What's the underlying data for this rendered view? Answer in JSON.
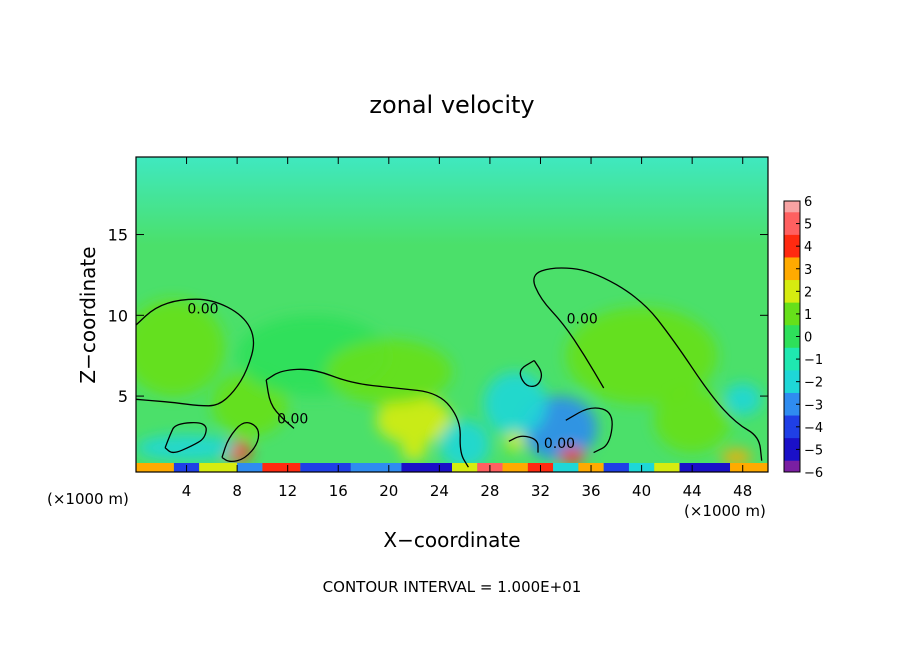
{
  "chart_data": {
    "type": "heatmap",
    "title": "zonal velocity",
    "xlabel": "X−coordinate",
    "ylabel": "Z−coordinate",
    "x_unit_left": "(×1000 m)",
    "x_unit_right": "(×1000 m)",
    "footer": "CONTOUR INTERVAL = 1.000E+01",
    "xlim": [
      0,
      50
    ],
    "ylim": [
      0.3,
      19.8
    ],
    "x_ticks": [
      4,
      8,
      12,
      16,
      20,
      24,
      28,
      32,
      36,
      40,
      44,
      48
    ],
    "x_tick_labels": [
      "4",
      "8",
      "12",
      "16",
      "20",
      "24",
      "28",
      "32",
      "36",
      "40",
      "44",
      "48"
    ],
    "y_ticks": [
      5,
      10,
      15
    ],
    "y_tick_labels": [
      "5",
      "10",
      "15"
    ],
    "grid": false,
    "colorbar": {
      "levels": [
        -6,
        -5,
        -4,
        -3,
        -2,
        -1,
        0,
        1,
        2,
        3,
        4,
        5,
        6
      ],
      "labels": [
        "−6",
        "−5",
        "−4",
        "−3",
        "−2",
        "−1",
        "0",
        "1",
        "2",
        "3",
        "4",
        "5",
        "6"
      ],
      "colors": [
        "#7a1fa2",
        "#1a10c8",
        "#1f3fe6",
        "#2f8cf0",
        "#1ed7d7",
        "#1fe8b0",
        "#2ee05a",
        "#66e01a",
        "#d6ec10",
        "#ffaa00",
        "#ff2a10",
        "#ff6060",
        "#f7a3a3"
      ]
    },
    "background_color": "#4be06a",
    "upper_color": "#3fe8c0",
    "blobs": [
      {
        "x": 3,
        "z": 8,
        "rx": 4,
        "rz": 3,
        "level": 0.6
      },
      {
        "x": 9,
        "z": 4.5,
        "rx": 3,
        "rz": 2,
        "level": 0.7
      },
      {
        "x": 14,
        "z": 7.5,
        "rx": 6,
        "rz": 2.5,
        "level": 0.5
      },
      {
        "x": 22,
        "z": 3.5,
        "rx": 3,
        "rz": 1.5,
        "level": 1.8
      },
      {
        "x": 20,
        "z": 6.5,
        "rx": 5,
        "rz": 2,
        "level": 0.6
      },
      {
        "x": 33.5,
        "z": 3,
        "rx": 3,
        "rz": 2,
        "level": -3.2
      },
      {
        "x": 30,
        "z": 4.5,
        "rx": 2.5,
        "rz": 2,
        "level": -2
      },
      {
        "x": 26,
        "z": 2,
        "rx": 2,
        "rz": 1.5,
        "level": -1.5
      },
      {
        "x": 40,
        "z": 7.5,
        "rx": 6,
        "rz": 3,
        "level": 0.6
      },
      {
        "x": 44,
        "z": 3.5,
        "rx": 3,
        "rz": 2,
        "level": 1.5
      },
      {
        "x": 48,
        "z": 4.8,
        "rx": 1.5,
        "rz": 1,
        "level": -2
      },
      {
        "x": 8,
        "z": 1.6,
        "rx": 1.1,
        "rz": 0.7,
        "level": 4.2
      },
      {
        "x": 22,
        "z": 1.6,
        "rx": 1,
        "rz": 0.6,
        "level": 2.5
      },
      {
        "x": 34.5,
        "z": 1.3,
        "rx": 1,
        "rz": 0.5,
        "level": 4
      },
      {
        "x": 30,
        "z": 2.2,
        "rx": 0.8,
        "rz": 0.6,
        "level": 2
      },
      {
        "x": 4,
        "z": 1.8,
        "rx": 4,
        "rz": 0.8,
        "level": -2
      },
      {
        "x": 47.5,
        "z": 1.2,
        "rx": 1.2,
        "rz": 0.5,
        "level": 3
      }
    ],
    "surface_strip": [
      {
        "x0": 0,
        "x1": 3,
        "level": 3
      },
      {
        "x0": 3,
        "x1": 5,
        "level": -4
      },
      {
        "x0": 5,
        "x1": 8,
        "level": 2
      },
      {
        "x0": 8,
        "x1": 10,
        "level": -3
      },
      {
        "x0": 10,
        "x1": 13,
        "level": 4
      },
      {
        "x0": 13,
        "x1": 17,
        "level": -4
      },
      {
        "x0": 17,
        "x1": 21,
        "level": -3
      },
      {
        "x0": 21,
        "x1": 25,
        "level": -5
      },
      {
        "x0": 25,
        "x1": 27,
        "level": 2
      },
      {
        "x0": 27,
        "x1": 29,
        "level": 5
      },
      {
        "x0": 29,
        "x1": 31,
        "level": 3
      },
      {
        "x0": 31,
        "x1": 33,
        "level": 4
      },
      {
        "x0": 33,
        "x1": 35,
        "level": -2
      },
      {
        "x0": 35,
        "x1": 37,
        "level": 3
      },
      {
        "x0": 37,
        "x1": 39,
        "level": -4
      },
      {
        "x0": 39,
        "x1": 41,
        "level": -2
      },
      {
        "x0": 41,
        "x1": 43,
        "level": 2
      },
      {
        "x0": 43,
        "x1": 47,
        "level": -5
      },
      {
        "x0": 47,
        "x1": 50,
        "level": 3
      }
    ],
    "contours": [
      {
        "level": 0,
        "points": [
          [
            0,
            9.4
          ],
          [
            1.5,
            10.5
          ],
          [
            3.5,
            11
          ],
          [
            6,
            11
          ],
          [
            8.5,
            10
          ],
          [
            9.5,
            8.5
          ],
          [
            8.8,
            6.6
          ],
          [
            7.8,
            5.3
          ],
          [
            6.5,
            4.4
          ],
          [
            5,
            4.4
          ],
          [
            3,
            4.6
          ],
          [
            1.5,
            4.7
          ],
          [
            0,
            4.8
          ]
        ]
      },
      {
        "level": 0,
        "points": [
          [
            10.3,
            6
          ],
          [
            11.5,
            6.6
          ],
          [
            14,
            6.7
          ],
          [
            17,
            5.8
          ],
          [
            20.5,
            5.5
          ],
          [
            24,
            5.2
          ],
          [
            25.7,
            3.5
          ],
          [
            25.6,
            1.5
          ],
          [
            26.3,
            0.6
          ]
        ]
      },
      {
        "level": 0,
        "points": [
          [
            10.3,
            6
          ],
          [
            10.6,
            4.5
          ],
          [
            11.6,
            3.6
          ],
          [
            12.5,
            3
          ]
        ]
      },
      {
        "level": 0,
        "points": [
          [
            31.8,
            1.5
          ],
          [
            31.8,
            2.3
          ],
          [
            30.5,
            2.6
          ],
          [
            29.5,
            2.2
          ]
        ]
      },
      {
        "level": 0,
        "points": [
          [
            31.5,
            7.2
          ],
          [
            32.2,
            6.4
          ],
          [
            31.8,
            5.6
          ],
          [
            30.8,
            5.6
          ],
          [
            30.2,
            6.6
          ],
          [
            31.5,
            7.2
          ]
        ]
      },
      {
        "level": 0,
        "points": [
          [
            34,
            3.5
          ],
          [
            36,
            4.4
          ],
          [
            37.8,
            4
          ],
          [
            37.5,
            2
          ],
          [
            36.2,
            1.5
          ]
        ]
      },
      {
        "level": 0,
        "points": [
          [
            37,
            5.5
          ],
          [
            35.5,
            7.5
          ],
          [
            33.8,
            9.5
          ],
          [
            32,
            11
          ],
          [
            31.2,
            12.5
          ],
          [
            33,
            13
          ],
          [
            36,
            12.8
          ],
          [
            40,
            11
          ],
          [
            42.5,
            8.5
          ],
          [
            45.5,
            5
          ],
          [
            47.5,
            3.3
          ],
          [
            49.3,
            2.5
          ],
          [
            49.5,
            1
          ]
        ]
      },
      {
        "level": 0,
        "points": [
          [
            2.3,
            1.8
          ],
          [
            2.7,
            2.6
          ],
          [
            3.1,
            3.3
          ],
          [
            5.6,
            3.4
          ],
          [
            5.5,
            2.4
          ],
          [
            4.4,
            1.9
          ],
          [
            2.9,
            1.4
          ],
          [
            2.3,
            1.8
          ]
        ]
      },
      {
        "level": 0,
        "points": [
          [
            6.8,
            1.2
          ],
          [
            7.3,
            2.4
          ],
          [
            8.5,
            3.5
          ],
          [
            9.7,
            3.1
          ],
          [
            9.7,
            2.1
          ],
          [
            8.6,
            1.1
          ],
          [
            7.4,
            0.9
          ],
          [
            6.8,
            1.2
          ]
        ]
      }
    ],
    "contour_labels": [
      {
        "text": "0.00",
        "x": 5.3,
        "z": 10.1
      },
      {
        "text": "0.00",
        "x": 12.4,
        "z": 3.3
      },
      {
        "text": "0.00",
        "x": 35.3,
        "z": 9.5
      },
      {
        "text": "0.00",
        "x": 33.5,
        "z": 1.8
      }
    ]
  }
}
